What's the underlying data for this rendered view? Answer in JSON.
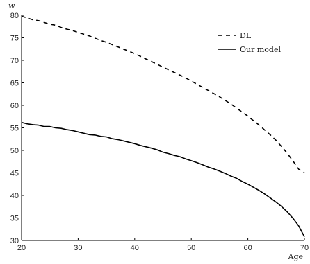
{
  "chart_data": {
    "type": "line",
    "xlabel": "Age",
    "ylabel": "w",
    "xlim": [
      20,
      70
    ],
    "ylim": [
      30,
      80
    ],
    "xticks": [
      "20",
      "30",
      "40",
      "50",
      "60",
      "70"
    ],
    "yticks": [
      "30",
      "35",
      "40",
      "45",
      "50",
      "55",
      "60",
      "65",
      "70",
      "75",
      "80"
    ],
    "grid": false,
    "legend_position": "top-right",
    "series": [
      {
        "name": "DL",
        "style": "dashed",
        "color": "#000000",
        "x": [
          20,
          21,
          22,
          23,
          24,
          25,
          26,
          27,
          28,
          29,
          30,
          31,
          32,
          33,
          34,
          35,
          36,
          37,
          38,
          39,
          40,
          41,
          42,
          43,
          44,
          45,
          46,
          47,
          48,
          49,
          50,
          51,
          52,
          53,
          54,
          55,
          56,
          57,
          58,
          59,
          60,
          61,
          62,
          63,
          64,
          65,
          66,
          67,
          68,
          69,
          70
        ],
        "values": [
          79.8,
          79.4,
          79.0,
          78.8,
          78.4,
          78.0,
          77.8,
          77.3,
          76.9,
          76.6,
          76.2,
          75.8,
          75.4,
          74.9,
          74.4,
          74.0,
          73.5,
          73.0,
          72.5,
          72.0,
          71.5,
          70.9,
          70.3,
          69.7,
          69.1,
          68.5,
          67.9,
          67.3,
          66.7,
          66.1,
          65.4,
          64.7,
          64.0,
          63.3,
          62.6,
          61.9,
          61.1,
          60.3,
          59.4,
          58.5,
          57.6,
          56.6,
          55.6,
          54.5,
          53.4,
          52.2,
          50.8,
          49.3,
          47.6,
          45.8,
          45.0
        ]
      },
      {
        "name": "Our model",
        "style": "solid",
        "color": "#000000",
        "x": [
          20,
          21,
          22,
          23,
          24,
          25,
          26,
          27,
          28,
          29,
          30,
          31,
          32,
          33,
          34,
          35,
          36,
          37,
          38,
          39,
          40,
          41,
          42,
          43,
          44,
          45,
          46,
          47,
          48,
          49,
          50,
          51,
          52,
          53,
          54,
          55,
          56,
          57,
          58,
          59,
          60,
          61,
          62,
          63,
          64,
          65,
          66,
          67,
          68,
          69,
          70
        ],
        "values": [
          56.2,
          55.9,
          55.7,
          55.6,
          55.3,
          55.3,
          55.0,
          54.9,
          54.6,
          54.4,
          54.1,
          53.8,
          53.5,
          53.4,
          53.1,
          53.0,
          52.6,
          52.4,
          52.1,
          51.8,
          51.5,
          51.1,
          50.8,
          50.5,
          50.1,
          49.6,
          49.3,
          48.9,
          48.6,
          48.1,
          47.7,
          47.3,
          46.8,
          46.3,
          45.9,
          45.4,
          44.9,
          44.3,
          43.8,
          43.1,
          42.5,
          41.8,
          41.1,
          40.3,
          39.4,
          38.5,
          37.5,
          36.3,
          34.9,
          33.2,
          30.8
        ]
      }
    ]
  }
}
